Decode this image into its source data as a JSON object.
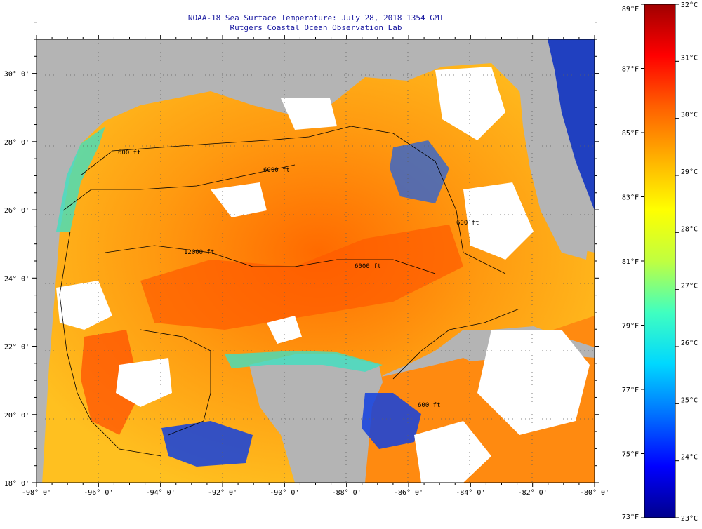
{
  "title": "NOAA-18 Sea Surface Temperature:  July 28, 2018 1354 GMT",
  "subtitle": "Rutgers Coastal Ocean Observation Lab",
  "map": {
    "lon_range": [
      -98,
      -80
    ],
    "lat_range": [
      18,
      31
    ],
    "lon_ticks": [
      "-98° 0'",
      "-96° 0'",
      "-94° 0'",
      "-92° 0'",
      "-90° 0'",
      "-88° 0'",
      "-86° 0'",
      "-84° 0'",
      "-82° 0'",
      "-80° 0'"
    ],
    "lat_ticks": [
      "18° 0'",
      "20° 0'",
      "22° 0'",
      "24° 0'",
      "26° 0'",
      "28° 0'",
      "30° 0'"
    ],
    "contour_labels": [
      "600 ft",
      "6000 ft",
      "12000 ft",
      "6000 ft",
      "600 ft",
      "600 ft"
    ],
    "land_color": "#b4b4b4",
    "cloud_color": "#ffffff"
  },
  "colorbar": {
    "f_labels": [
      "89°F",
      "87°F",
      "85°F",
      "83°F",
      "81°F",
      "79°F",
      "77°F",
      "75°F",
      "73°F"
    ],
    "c_labels": [
      "32°C",
      "31°C",
      "30°C",
      "29°C",
      "28°C",
      "27°C",
      "26°C",
      "25°C",
      "24°C",
      "23°C"
    ],
    "colors": [
      "#00008c",
      "#0000ff",
      "#0070ff",
      "#00d8ff",
      "#40ffc0",
      "#c0ff40",
      "#ffff00",
      "#ffb000",
      "#ff6000",
      "#ff0000",
      "#a00000"
    ]
  }
}
